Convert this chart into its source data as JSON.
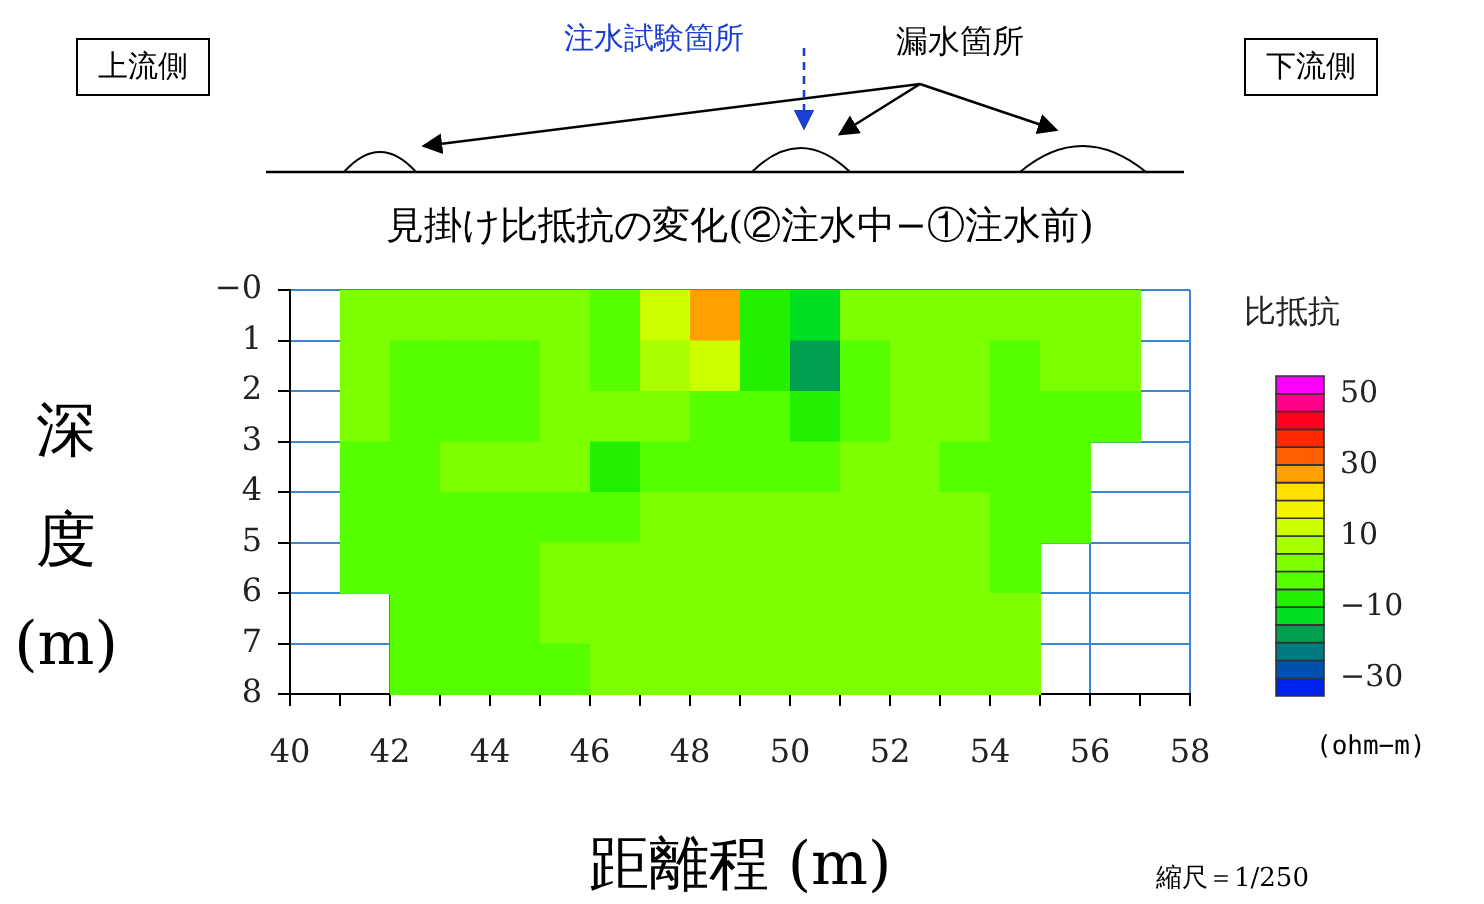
{
  "chart_data": {
    "type": "heatmap",
    "title": "見掛け比抵抗の変化(②注水中−①注水前)",
    "xlabel": "距離程 (m)",
    "ylabel": "深度(m)",
    "clabel": "比抵抗",
    "annotations": [
      "上流側",
      "注水試験箇所",
      "漏水箇所",
      "下流側",
      "(ohm−m)",
      "縮尺＝1/250"
    ],
    "x": [
      41.5,
      42.5,
      43.5,
      44.5,
      45.5,
      46.5,
      47.5,
      48.5,
      49.5,
      50.5,
      51.5,
      52.5,
      53.5,
      54.5,
      55.5,
      56.5
    ],
    "xlim": [
      40,
      58
    ],
    "xticks": [
      40,
      {
        "value": 41,
        "label": null
      },
      42,
      {
        "value": 43,
        "label": null
      },
      44,
      {
        "value": 45,
        "label": null
      },
      46,
      {
        "value": 47,
        "label": null
      },
      48,
      {
        "value": 49,
        "label": null
      },
      50,
      {
        "value": 51,
        "label": null
      },
      52,
      {
        "value": 53,
        "label": null
      },
      54,
      {
        "value": 55,
        "label": null
      },
      56,
      {
        "value": 57,
        "label": null
      },
      58
    ],
    "ylim": [
      8,
      0
    ],
    "yticks": [
      {
        "value": 0,
        "label": "−0"
      },
      1,
      2,
      3,
      4,
      5,
      6,
      7,
      8
    ],
    "cells": [
      [
        2.5,
        2.5,
        2.5,
        2.5,
        2.5,
        -2.5,
        12.5,
        27.5,
        -7.5,
        -12.5,
        2.5,
        2.5,
        2.5,
        2.5,
        2.5,
        2.5
      ],
      [
        2.5,
        -2.5,
        -2.5,
        -2.5,
        2.5,
        -2.5,
        7.5,
        12.5,
        -7.5,
        -17.5,
        -2.5,
        2.5,
        2.5,
        -2.5,
        2.5,
        2.5
      ],
      [
        2.5,
        -2.5,
        -2.5,
        -2.5,
        2.5,
        2.5,
        2.5,
        -2.5,
        -2.5,
        -7.5,
        -2.5,
        2.5,
        2.5,
        -2.5,
        -2.5,
        -2.5
      ],
      [
        -2.5,
        -2.5,
        2.5,
        2.5,
        2.5,
        -7.5,
        -2.5,
        -2.5,
        -2.5,
        -2.5,
        2.5,
        2.5,
        -2.5,
        -2.5,
        -2.5,
        null
      ],
      [
        -2.5,
        -2.5,
        -2.5,
        -2.5,
        -2.5,
        -2.5,
        2.5,
        2.5,
        2.5,
        2.5,
        2.5,
        2.5,
        2.5,
        -2.5,
        -2.5,
        null
      ],
      [
        -2.5,
        -2.5,
        -2.5,
        -2.5,
        2.5,
        2.5,
        2.5,
        2.5,
        2.5,
        2.5,
        2.5,
        2.5,
        2.5,
        -2.5,
        null,
        null
      ],
      [
        null,
        -2.5,
        -2.5,
        -2.5,
        2.5,
        2.5,
        2.5,
        2.5,
        2.5,
        2.5,
        2.5,
        2.5,
        2.5,
        2.5,
        null,
        null
      ],
      [
        null,
        -2.5,
        -2.5,
        -2.5,
        -2.5,
        2.5,
        2.5,
        2.5,
        2.5,
        2.5,
        2.5,
        2.5,
        2.5,
        2.5,
        null,
        null
      ]
    ],
    "clim": [
      -35,
      55
    ],
    "cticks": [
      -30,
      -10,
      10,
      30,
      50
    ],
    "colors": [
      "#0022ee",
      "#0050b0",
      "#007a80",
      "#00a050",
      "#00e020",
      "#22f000",
      "#55ff00",
      "#7cff00",
      "#a8ff00",
      "#ccff00",
      "#f4f400",
      "#ffe000",
      "#ffa000",
      "#ff6000",
      "#ff2800",
      "#ff0020",
      "#ff0088",
      "#ff00ff"
    ],
    "grid": true
  }
}
